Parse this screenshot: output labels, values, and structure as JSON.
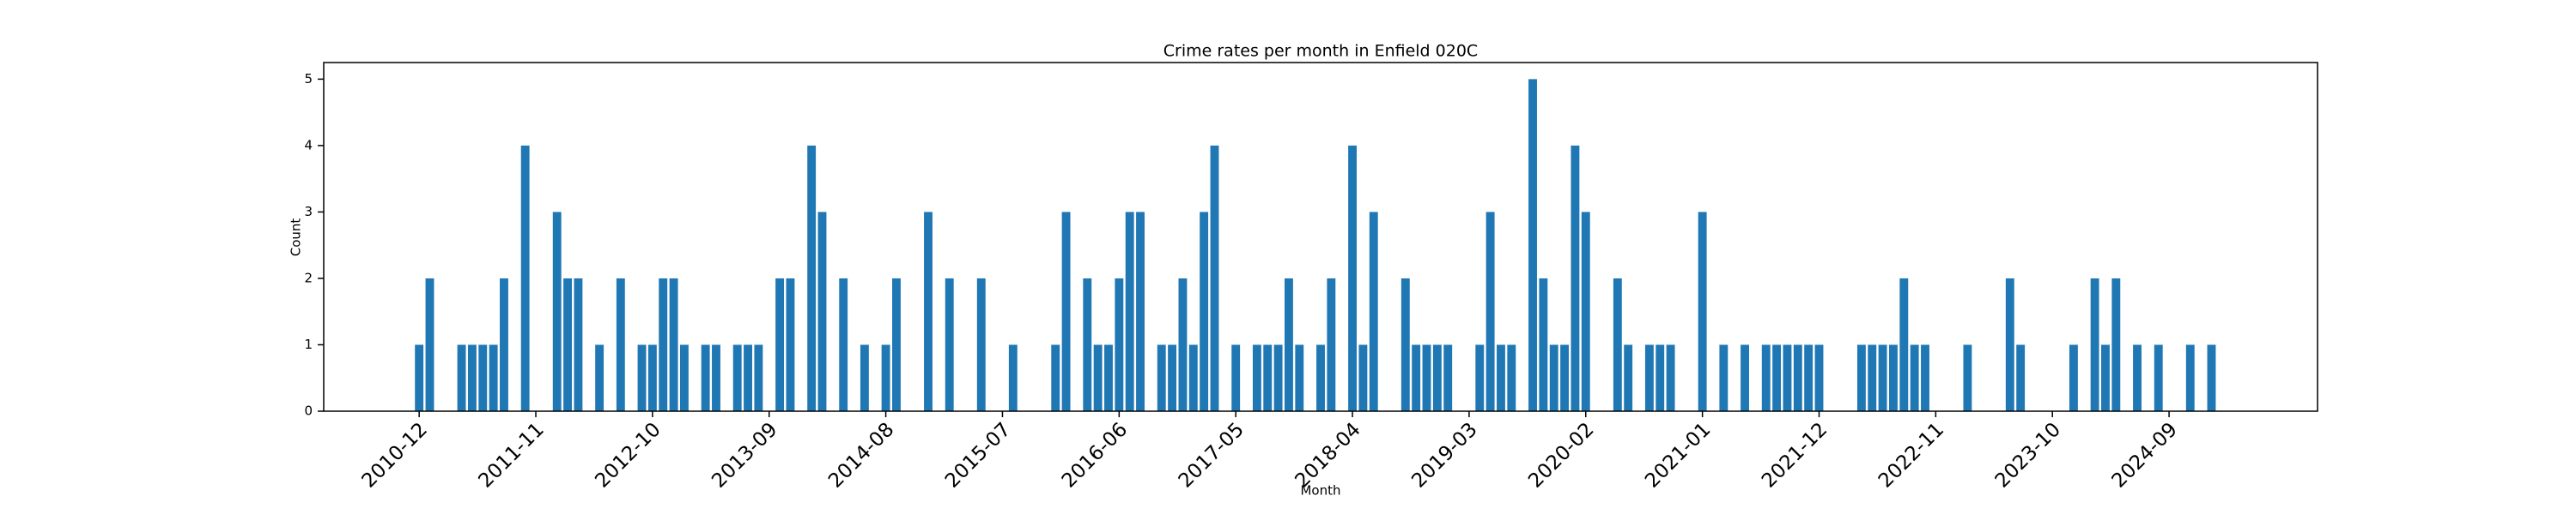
{
  "chart_data": {
    "type": "bar",
    "title": "Crime rates per month in Enfield 020C",
    "xlabel": "Month",
    "ylabel": "Count",
    "color": "#1f77b4",
    "x": [
      "2010-12",
      "2011-01",
      "2011-04",
      "2011-05",
      "2011-06",
      "2011-07",
      "2011-08",
      "2011-10",
      "2012-01",
      "2012-02",
      "2012-03",
      "2012-05",
      "2012-07",
      "2012-09",
      "2012-10",
      "2012-11",
      "2012-12",
      "2013-01",
      "2013-03",
      "2013-04",
      "2013-06",
      "2013-07",
      "2013-08",
      "2013-10",
      "2013-11",
      "2014-01",
      "2014-02",
      "2014-04",
      "2014-06",
      "2014-08",
      "2014-09",
      "2014-12",
      "2015-02",
      "2015-05",
      "2015-08",
      "2015-12",
      "2016-01",
      "2016-03",
      "2016-04",
      "2016-05",
      "2016-06",
      "2016-07",
      "2016-08",
      "2016-10",
      "2016-11",
      "2016-12",
      "2017-01",
      "2017-02",
      "2017-03",
      "2017-05",
      "2017-07",
      "2017-08",
      "2017-09",
      "2017-10",
      "2017-11",
      "2018-01",
      "2018-02",
      "2018-04",
      "2018-05",
      "2018-06",
      "2018-09",
      "2018-10",
      "2018-11",
      "2018-12",
      "2019-01",
      "2019-04",
      "2019-05",
      "2019-06",
      "2019-07",
      "2019-09",
      "2019-10",
      "2019-11",
      "2019-12",
      "2020-01",
      "2020-02",
      "2020-05",
      "2020-06",
      "2020-08",
      "2020-09",
      "2020-10",
      "2021-01",
      "2021-03",
      "2021-05",
      "2021-07",
      "2021-08",
      "2021-09",
      "2021-10",
      "2021-11",
      "2021-12",
      "2022-04",
      "2022-05",
      "2022-06",
      "2022-07",
      "2022-08",
      "2022-09",
      "2022-10",
      "2023-02",
      "2023-06",
      "2023-07",
      "2023-12",
      "2024-02",
      "2024-03",
      "2024-04",
      "2024-06",
      "2024-08",
      "2024-11",
      "2025-01"
    ],
    "values": [
      1,
      2,
      1,
      1,
      1,
      1,
      2,
      4,
      3,
      2,
      2,
      1,
      2,
      1,
      1,
      2,
      2,
      1,
      1,
      1,
      1,
      1,
      1,
      2,
      2,
      4,
      3,
      2,
      1,
      1,
      2,
      3,
      2,
      2,
      1,
      1,
      3,
      2,
      1,
      1,
      2,
      3,
      3,
      1,
      1,
      2,
      1,
      3,
      4,
      1,
      1,
      1,
      1,
      2,
      1,
      1,
      2,
      4,
      1,
      3,
      2,
      1,
      1,
      1,
      1,
      1,
      3,
      1,
      1,
      5,
      2,
      1,
      1,
      4,
      3,
      2,
      1,
      1,
      1,
      1,
      3,
      1,
      1,
      1,
      1,
      1,
      1,
      1,
      1,
      1,
      1,
      1,
      1,
      2,
      1,
      1,
      1,
      2,
      1,
      1,
      2,
      1,
      2,
      1,
      1,
      1,
      1
    ],
    "xlim": [
      "2010-03",
      "2025-11"
    ],
    "xticks": [
      "2010-12",
      "2011-11",
      "2012-10",
      "2013-09",
      "2014-08",
      "2015-07",
      "2016-06",
      "2017-05",
      "2018-04",
      "2019-03",
      "2020-02",
      "2021-01",
      "2021-12",
      "2022-11",
      "2023-10",
      "2024-09"
    ],
    "ylim": [
      0,
      5.25
    ],
    "yticks": [
      0,
      1,
      2,
      3,
      4,
      5
    ]
  }
}
